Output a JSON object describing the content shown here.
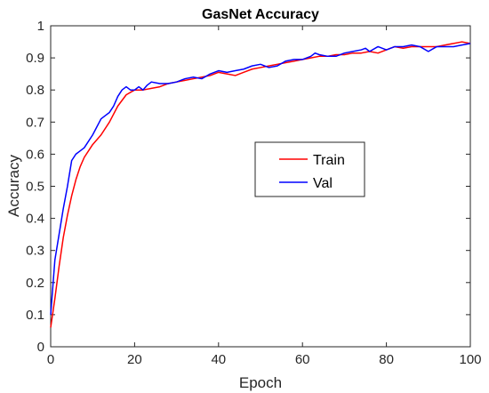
{
  "chart_data": {
    "type": "line",
    "title": "GasNet Accuracy",
    "xlabel": "Epoch",
    "ylabel": "Accuracy",
    "xlim": [
      0,
      100
    ],
    "ylim": [
      0,
      1
    ],
    "xticks": [
      0,
      20,
      40,
      60,
      80,
      100
    ],
    "yticks": [
      0,
      0.1,
      0.2,
      0.3,
      0.4,
      0.5,
      0.6,
      0.7,
      0.8,
      0.9,
      1
    ],
    "ytick_labels": [
      "0",
      "0.1",
      "0.2",
      "0.3",
      "0.4",
      "0.5",
      "0.6",
      "0.7",
      "0.8",
      "0.9",
      "1"
    ],
    "grid": false,
    "legend_position": "center-right",
    "series": [
      {
        "name": "Train",
        "color": "#ff0000",
        "x": [
          0,
          1,
          2,
          3,
          4,
          5,
          6,
          7,
          8,
          10,
          12,
          14,
          16,
          18,
          20,
          22,
          24,
          26,
          28,
          30,
          32,
          34,
          36,
          38,
          40,
          42,
          44,
          46,
          48,
          50,
          52,
          54,
          56,
          58,
          60,
          62,
          64,
          66,
          68,
          70,
          72,
          74,
          76,
          78,
          80,
          82,
          84,
          86,
          88,
          90,
          92,
          94,
          96,
          98,
          100
        ],
        "values": [
          0.06,
          0.15,
          0.25,
          0.34,
          0.41,
          0.47,
          0.52,
          0.56,
          0.59,
          0.63,
          0.66,
          0.7,
          0.75,
          0.785,
          0.8,
          0.8,
          0.805,
          0.81,
          0.82,
          0.825,
          0.83,
          0.835,
          0.84,
          0.845,
          0.855,
          0.85,
          0.845,
          0.855,
          0.865,
          0.87,
          0.875,
          0.88,
          0.885,
          0.89,
          0.895,
          0.9,
          0.905,
          0.905,
          0.91,
          0.91,
          0.915,
          0.915,
          0.92,
          0.915,
          0.925,
          0.935,
          0.93,
          0.935,
          0.935,
          0.935,
          0.935,
          0.94,
          0.945,
          0.95,
          0.945
        ]
      },
      {
        "name": "Val",
        "color": "#0000ff",
        "x": [
          0,
          1,
          2,
          3,
          4,
          5,
          6,
          7,
          8,
          10,
          12,
          13,
          14,
          15,
          16,
          17,
          18,
          19,
          20,
          21,
          22,
          23,
          24,
          26,
          28,
          30,
          32,
          34,
          36,
          38,
          40,
          42,
          44,
          46,
          48,
          50,
          52,
          54,
          56,
          58,
          60,
          62,
          63,
          64,
          66,
          68,
          70,
          72,
          74,
          75,
          76,
          78,
          80,
          82,
          84,
          86,
          88,
          90,
          92,
          94,
          96,
          98,
          100
        ],
        "values": [
          0.1,
          0.27,
          0.35,
          0.43,
          0.5,
          0.58,
          0.6,
          0.61,
          0.62,
          0.66,
          0.71,
          0.72,
          0.73,
          0.75,
          0.78,
          0.8,
          0.81,
          0.8,
          0.8,
          0.81,
          0.8,
          0.815,
          0.825,
          0.82,
          0.82,
          0.825,
          0.835,
          0.84,
          0.835,
          0.85,
          0.86,
          0.855,
          0.86,
          0.865,
          0.875,
          0.88,
          0.87,
          0.875,
          0.89,
          0.895,
          0.895,
          0.905,
          0.915,
          0.91,
          0.905,
          0.905,
          0.915,
          0.92,
          0.925,
          0.93,
          0.92,
          0.935,
          0.925,
          0.935,
          0.935,
          0.94,
          0.935,
          0.92,
          0.935,
          0.935,
          0.935,
          0.94,
          0.945
        ]
      }
    ]
  }
}
